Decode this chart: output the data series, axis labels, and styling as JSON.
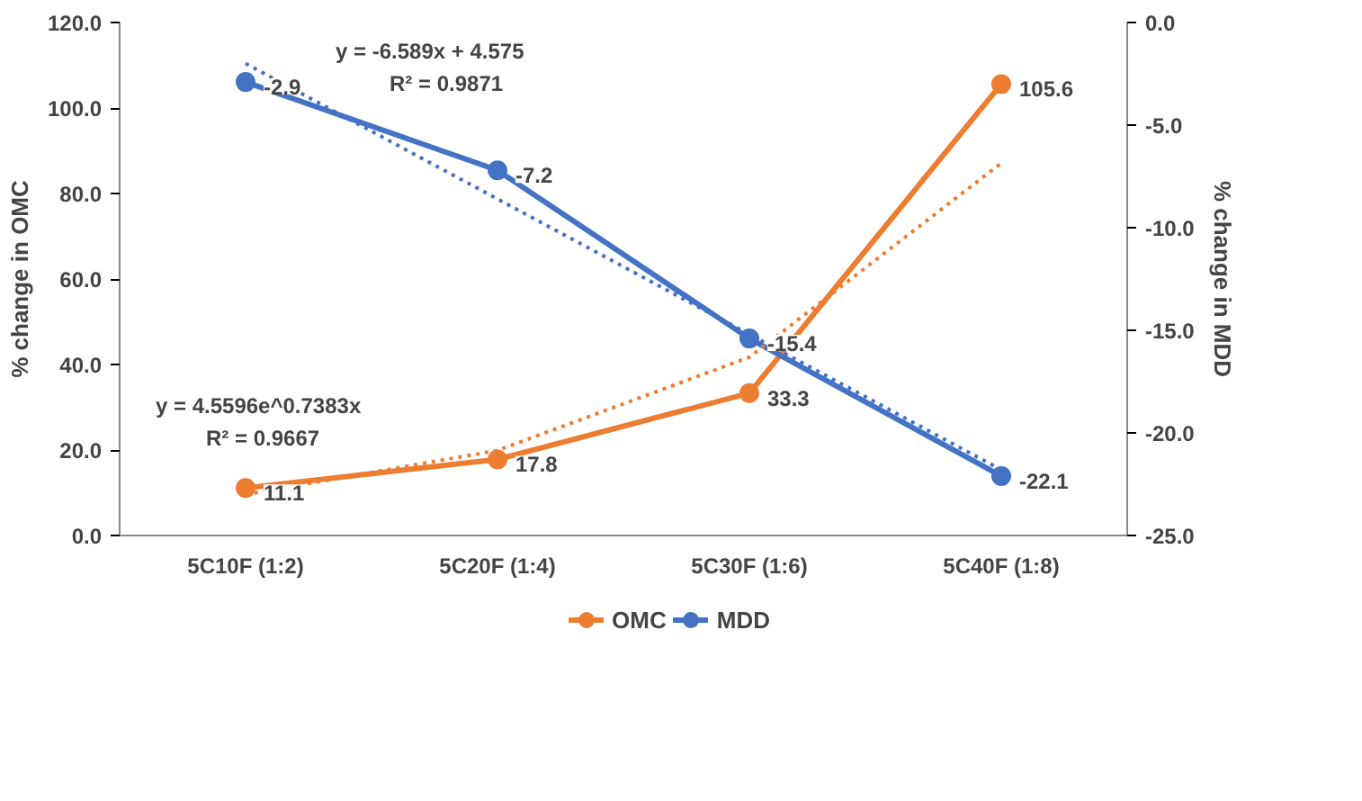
{
  "chart_data": {
    "type": "line",
    "categories": [
      "5C10F (1:2)",
      "5C20F (1:4)",
      "5C30F (1:6)",
      "5C40F (1:8)"
    ],
    "ylabel": "% change in OMC",
    "y2label": "% change in MDD",
    "ylim": [
      0,
      120
    ],
    "yticks": [
      {
        "value": 0,
        "label": "0.0"
      },
      {
        "value": 20,
        "label": "20.0"
      },
      {
        "value": 40,
        "label": "40.0"
      },
      {
        "value": 60,
        "label": "60.0"
      },
      {
        "value": 80,
        "label": "80.0"
      },
      {
        "value": 100,
        "label": "100.0"
      },
      {
        "value": 120,
        "label": "120.0"
      }
    ],
    "y2lim": [
      -25,
      0
    ],
    "y2ticks": [
      {
        "value": -25,
        "label": "-25.0"
      },
      {
        "value": -20,
        "label": "-20.0"
      },
      {
        "value": -15,
        "label": "-15.0"
      },
      {
        "value": -10,
        "label": "-10.0"
      },
      {
        "value": -5,
        "label": "-5.0"
      },
      {
        "value": 0,
        "label": "0.0"
      }
    ],
    "marker": "circle",
    "line_style": "solid",
    "grid": false,
    "legend": "bottom",
    "series": [
      {
        "name": "OMC",
        "color": "#ed7d31",
        "values": [
          11.1,
          17.8,
          33.3,
          105.6
        ],
        "value_labels": [
          "11.1",
          "17.8",
          "33.3",
          "105.6"
        ]
      },
      {
        "name": "MDD",
        "color": "#4472c4",
        "axis": "y2",
        "values": [
          -2.9,
          -7.2,
          -15.4,
          -22.1
        ],
        "value_labels": [
          "-2.9",
          "-7.2",
          "-15.4",
          "-22.1"
        ]
      },
      {
        "type": "line",
        "color": "#ed7d31",
        "line_style": "dotted",
        "marker": "none",
        "x": [
          "5C10F (1:2)",
          "5C20F (1:4)",
          "5C30F (1:6)",
          "5C40F (1:8)"
        ],
        "values": [
          9.6,
          19.9,
          41.7,
          87.1
        ]
      },
      {
        "type": "line",
        "color": "#4472c4",
        "axis": "y2",
        "line_style": "dotted",
        "marker": "none",
        "x": [
          "5C10F (1:2)",
          "5C20F (1:4)",
          "5C30F (1:6)",
          "5C40F (1:8)"
        ],
        "values": [
          -2.0,
          -8.6,
          -15.2,
          -21.8
        ]
      }
    ],
    "annotations": [
      "y = -6.589x + 4.575",
      "R² = 0.9871",
      "y = 4.5596e^0.7383x",
      "R² = 0.9667"
    ]
  }
}
